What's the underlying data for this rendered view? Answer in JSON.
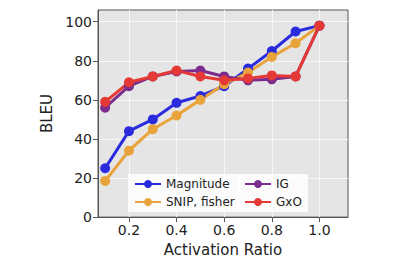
{
  "chart_data": {
    "type": "line",
    "x_label": "Activation Ratio",
    "y_label": "BLEU",
    "x": [
      0.1,
      0.2,
      0.3,
      0.4,
      0.5,
      0.6,
      0.7,
      0.8,
      0.9,
      1.0
    ],
    "series": [
      {
        "name": "Magnitude",
        "color": "#2b2bde",
        "values": [
          25,
          44,
          50,
          58.5,
          62,
          67,
          76,
          85,
          95,
          98
        ]
      },
      {
        "name": "SNIP, fisher",
        "color": "#e8a33a",
        "values": [
          18.5,
          34,
          45,
          52,
          60,
          68,
          74,
          82,
          89,
          98
        ]
      },
      {
        "name": "IG",
        "color": "#7b2c8c",
        "values": [
          56,
          67,
          72,
          74.5,
          75,
          72,
          70,
          70.5,
          72,
          98
        ]
      },
      {
        "name": "GxO",
        "color": "#e53935",
        "values": [
          59,
          69,
          72,
          75,
          72,
          70,
          71,
          72.5,
          72,
          98
        ]
      }
    ],
    "xlim": [
      0.07,
      1.12
    ],
    "xticks": [
      0.2,
      0.4,
      0.6,
      0.8,
      {
        "value": 1,
        "label": "1.0"
      }
    ],
    "ylim": [
      0,
      106
    ],
    "yticks": [
      0,
      20,
      40,
      60,
      80,
      100
    ],
    "grid": true,
    "legend": "lower right",
    "marker": "circle"
  }
}
